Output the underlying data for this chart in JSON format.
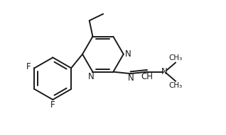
{
  "bg_color": "#ffffff",
  "line_color": "#1a1a1a",
  "line_width": 1.4,
  "font_size": 8.5,
  "figsize": [
    3.18,
    1.91
  ],
  "dpi": 100,
  "xlim": [
    0,
    10
  ],
  "ylim": [
    0,
    6
  ]
}
